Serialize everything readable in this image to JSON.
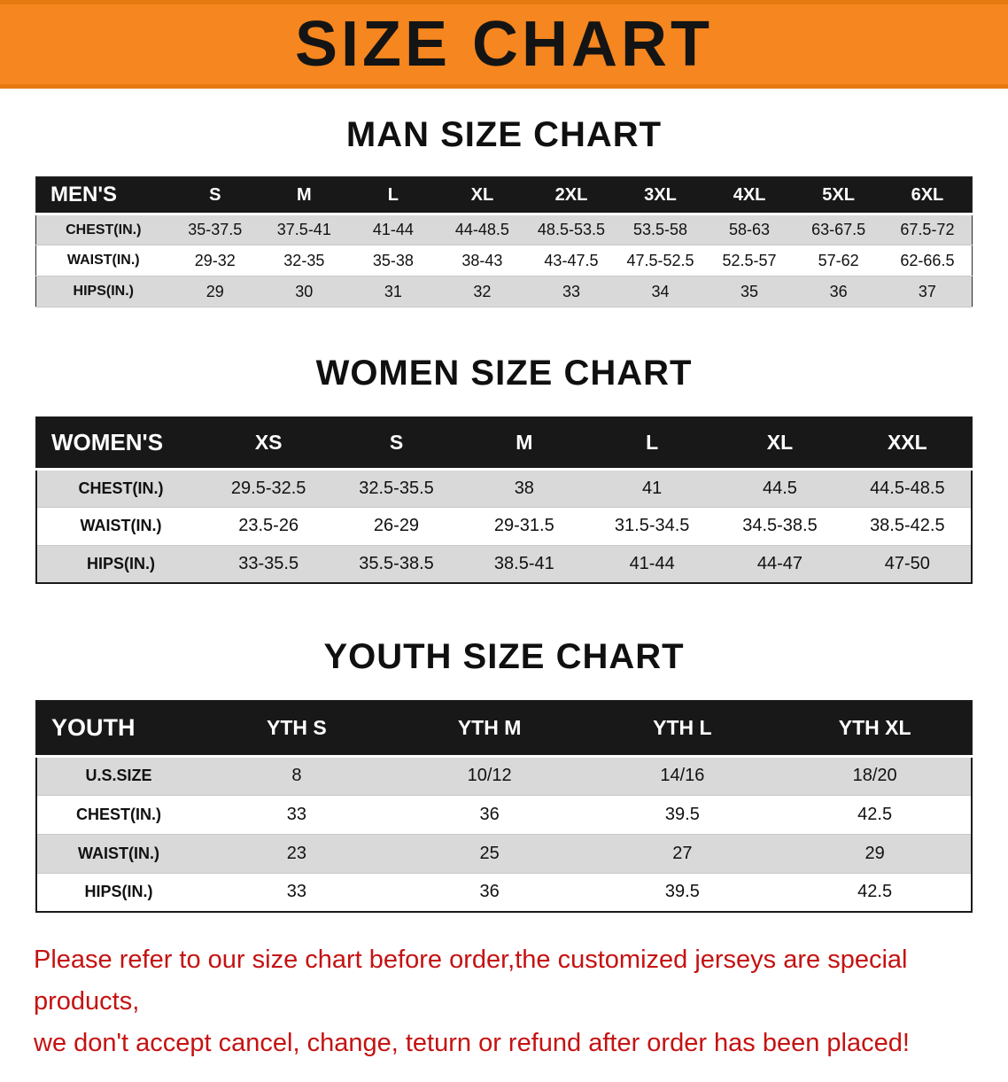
{
  "banner": {
    "title": "SIZE CHART",
    "bg_color": "#f6861f",
    "text_color": "#141414"
  },
  "sections": [
    {
      "id": "men",
      "heading": "MAN SIZE CHART",
      "table": {
        "header": [
          "MEN'S",
          "S",
          "M",
          "L",
          "XL",
          "2XL",
          "3XL",
          "4XL",
          "5XL",
          "6XL"
        ],
        "rows": [
          [
            "CHEST(IN.)",
            "35-37.5",
            "37.5-41",
            "41-44",
            "44-48.5",
            "48.5-53.5",
            "53.5-58",
            "58-63",
            "63-67.5",
            "67.5-72"
          ],
          [
            "WAIST(IN.)",
            "29-32",
            "32-35",
            "35-38",
            "38-43",
            "43-47.5",
            "47.5-52.5",
            "52.5-57",
            "57-62",
            "62-66.5"
          ],
          [
            "HIPS(IN.)",
            "29",
            "30",
            "31",
            "32",
            "33",
            "34",
            "35",
            "36",
            "37"
          ]
        ]
      }
    },
    {
      "id": "women",
      "heading": "WOMEN SIZE CHART",
      "table": {
        "header": [
          "WOMEN'S",
          "XS",
          "S",
          "M",
          "L",
          "XL",
          "XXL"
        ],
        "rows": [
          [
            "CHEST(IN.)",
            "29.5-32.5",
            "32.5-35.5",
            "38",
            "41",
            "44.5",
            "44.5-48.5"
          ],
          [
            "WAIST(IN.)",
            "23.5-26",
            "26-29",
            "29-31.5",
            "31.5-34.5",
            "34.5-38.5",
            "38.5-42.5"
          ],
          [
            "HIPS(IN.)",
            "33-35.5",
            "35.5-38.5",
            "38.5-41",
            "41-44",
            "44-47",
            "47-50"
          ]
        ]
      }
    },
    {
      "id": "youth",
      "heading": "YOUTH SIZE CHART",
      "table": {
        "header": [
          "YOUTH",
          "YTH S",
          "YTH M",
          "YTH L",
          "YTH XL"
        ],
        "rows": [
          [
            "U.S.SIZE",
            "8",
            "10/12",
            "14/16",
            "18/20"
          ],
          [
            "CHEST(IN.)",
            "33",
            "36",
            "39.5",
            "42.5"
          ],
          [
            "WAIST(IN.)",
            "23",
            "25",
            "27",
            "29"
          ],
          [
            "HIPS(IN.)",
            "33",
            "36",
            "39.5",
            "42.5"
          ]
        ]
      }
    }
  ],
  "footer": {
    "line1": "Please refer to our size chart before order,the customized jerseys are special products,",
    "line2": "we don't accept cancel, change, teturn or refund after order has been placed!",
    "text_color": "#c51212"
  }
}
